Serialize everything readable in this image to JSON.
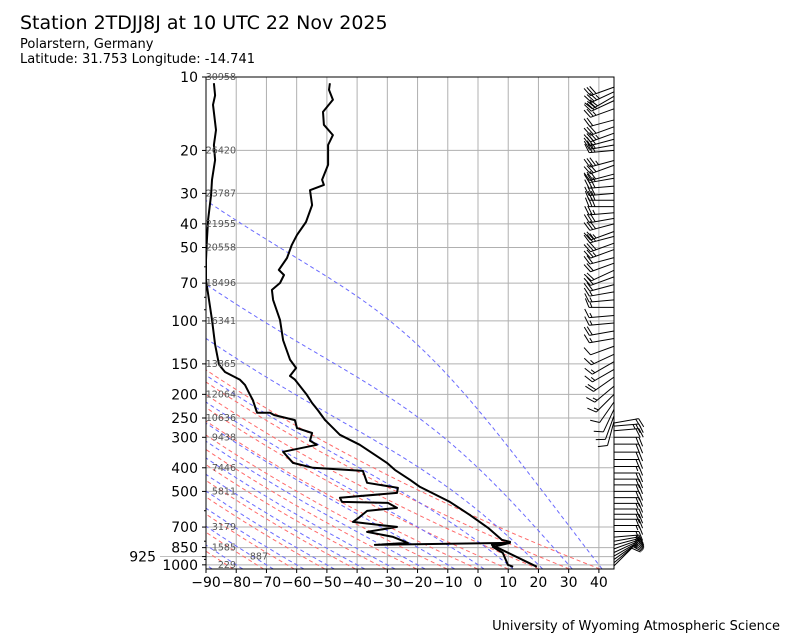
{
  "header": {
    "title": "Station 2TDJJ8J at 10 UTC 22 Nov 2025",
    "location": "Polarstern, Germany",
    "coordinates": "Latitude: 31.753 Longitude: -14.741"
  },
  "footer": "University of Wyoming Atmospheric Science",
  "chart_data": {
    "type": "line",
    "title": "Station 2TDJJ8J at 10 UTC 22 Nov 2025",
    "xlabel": "",
    "ylabel": "",
    "xlim": [
      -90,
      45
    ],
    "ylim": [
      1040,
      10
    ],
    "y_scale": "log",
    "grid": true,
    "colors": {
      "temperature": "#000000",
      "dewpoint": "#000000",
      "dry_adiabat": "#ff6a6a",
      "moist_adiabat": "#6a6aff",
      "grid": "#b0b0b0",
      "height_label": "#555555"
    },
    "x_ticks": [
      "−90",
      "−80",
      "−70",
      "−60",
      "−50",
      "−40",
      "−30",
      "−20",
      "−10",
      "0",
      "10",
      "20",
      "30",
      "40"
    ],
    "x_tick_values": [
      -90,
      -80,
      -70,
      -60,
      -50,
      -40,
      -30,
      -20,
      -10,
      0,
      10,
      20,
      30,
      40
    ],
    "y_ticks": [
      "10",
      "20",
      "30",
      "40",
      "50",
      "70",
      "100",
      "150",
      "200",
      "250",
      "300",
      "400",
      "500",
      "700",
      "850",
      "925",
      "1000"
    ],
    "y_tick_values": [
      10,
      20,
      30,
      40,
      50,
      70,
      100,
      150,
      200,
      250,
      300,
      400,
      500,
      700,
      850,
      925,
      1000
    ],
    "y_minor_ticks": [
      60,
      80,
      90,
      600,
      800,
      950
    ],
    "height_labels": [
      {
        "p": 10,
        "h": "30958"
      },
      {
        "p": 20,
        "h": "26420"
      },
      {
        "p": 30,
        "h": "23787"
      },
      {
        "p": 40,
        "h": "21955"
      },
      {
        "p": 50,
        "h": "20558"
      },
      {
        "p": 70,
        "h": "18496"
      },
      {
        "p": 100,
        "h": "16341"
      },
      {
        "p": 150,
        "h": "13865"
      },
      {
        "p": 200,
        "h": "12064"
      },
      {
        "p": 250,
        "h": "10636"
      },
      {
        "p": 300,
        "h": "9438"
      },
      {
        "p": 400,
        "h": "7446"
      },
      {
        "p": 500,
        "h": "5811"
      },
      {
        "p": 700,
        "h": "3179"
      },
      {
        "p": 850,
        "h": "1585"
      },
      {
        "p": 925,
        "h": "887"
      },
      {
        "p": 1000,
        "h": "229"
      }
    ],
    "dry_adiabats_theta_K": [
      190,
      200,
      210,
      220,
      230,
      240,
      250,
      260,
      270,
      280,
      290,
      300,
      310
    ],
    "moist_adiabats_t1000_C": [
      -90,
      -80,
      -70,
      -60,
      -50,
      -40,
      -30,
      -20,
      -10,
      0,
      10,
      20,
      30,
      40
    ],
    "series": [
      {
        "name": "temperature",
        "points_p_T": [
          [
            10.6,
            -49.0
          ],
          [
            11.3,
            -49.3
          ],
          [
            12.4,
            -48.0
          ],
          [
            13.9,
            -51.3
          ],
          [
            15.7,
            -51.0
          ],
          [
            17.3,
            -48.0
          ],
          [
            19.0,
            -49.6
          ],
          [
            22.9,
            -49.6
          ],
          [
            26.4,
            -51.6
          ],
          [
            27.7,
            -51.0
          ],
          [
            29.1,
            -55.6
          ],
          [
            33.5,
            -54.9
          ],
          [
            39.3,
            -56.9
          ],
          [
            44.4,
            -59.9
          ],
          [
            48.8,
            -61.6
          ],
          [
            55.2,
            -63.2
          ],
          [
            61.8,
            -65.9
          ],
          [
            64.8,
            -64.2
          ],
          [
            69.9,
            -65.5
          ],
          [
            74.6,
            -68.2
          ],
          [
            82.0,
            -67.8
          ],
          [
            99,
            -65.5
          ],
          [
            120,
            -64.5
          ],
          [
            144,
            -62.2
          ],
          [
            156,
            -60.2
          ],
          [
            168,
            -62.2
          ],
          [
            174,
            -60.6
          ],
          [
            201,
            -56.6
          ],
          [
            217,
            -54.9
          ],
          [
            232,
            -53.0
          ],
          [
            255,
            -50.6
          ],
          [
            293,
            -45.7
          ],
          [
            322,
            -39.1
          ],
          [
            382,
            -30.1
          ],
          [
            408,
            -27.5
          ],
          [
            448,
            -22.5
          ],
          [
            479,
            -19.2
          ],
          [
            552,
            -9.3
          ],
          [
            624,
            -2.7
          ],
          [
            705,
            3.3
          ],
          [
            790,
            7.9
          ],
          [
            805,
            10.6
          ],
          [
            828,
            4.6
          ],
          [
            868,
            7.9
          ],
          [
            1019,
            19.5
          ]
        ]
      },
      {
        "name": "dewpoint",
        "points_p_T": [
          [
            10.6,
            -87.4
          ],
          [
            11.9,
            -87.0
          ],
          [
            13.0,
            -87.7
          ],
          [
            16.5,
            -86.7
          ],
          [
            19.0,
            -87.4
          ],
          [
            21.9,
            -87.0
          ],
          [
            26.4,
            -88.0
          ],
          [
            30.4,
            -88.3
          ],
          [
            38.5,
            -89.3
          ],
          [
            46.6,
            -89.7
          ],
          [
            56.2,
            -90.0
          ],
          [
            67.9,
            -90.0
          ],
          [
            82.0,
            -89.0
          ],
          [
            99,
            -88.0
          ],
          [
            125,
            -87.0
          ],
          [
            151,
            -85.7
          ],
          [
            162,
            -83.7
          ],
          [
            174,
            -78.8
          ],
          [
            183,
            -77.1
          ],
          [
            201,
            -75.4
          ],
          [
            211,
            -74.5
          ],
          [
            238,
            -73.1
          ],
          [
            238,
            -68.8
          ],
          [
            243,
            -67.5
          ],
          [
            255,
            -60.6
          ],
          [
            275,
            -59.9
          ],
          [
            288,
            -54.9
          ],
          [
            310,
            -55.6
          ],
          [
            322,
            -53.3
          ],
          [
            344,
            -64.5
          ],
          [
            382,
            -61.2
          ],
          [
            400,
            -54.6
          ],
          [
            412,
            -38.1
          ],
          [
            461,
            -36.7
          ],
          [
            483,
            -26.5
          ],
          [
            507,
            -26.8
          ],
          [
            531,
            -45.7
          ],
          [
            552,
            -45.0
          ],
          [
            557,
            -29.8
          ],
          [
            584,
            -26.8
          ],
          [
            601,
            -36.7
          ],
          [
            636,
            -39.1
          ],
          [
            667,
            -41.4
          ],
          [
            699,
            -26.8
          ],
          [
            733,
            -36.7
          ],
          [
            768,
            -28.1
          ],
          [
            813,
            -23.2
          ],
          [
            828,
            -34.1
          ],
          [
            813,
            10.6
          ],
          [
            844,
            4.9
          ],
          [
            893,
            8.2
          ],
          [
            1000,
            9.9
          ],
          [
            1019,
            11.6
          ]
        ]
      }
    ],
    "wind_p_dir_kt": [
      [
        11,
        250,
        30
      ],
      [
        11.5,
        245,
        35
      ],
      [
        12,
        240,
        30
      ],
      [
        12.5,
        245,
        30
      ],
      [
        13.5,
        250,
        25
      ],
      [
        15,
        255,
        20
      ],
      [
        16,
        250,
        30
      ],
      [
        17,
        250,
        35
      ],
      [
        18,
        255,
        30
      ],
      [
        19,
        260,
        25
      ],
      [
        20,
        265,
        30
      ],
      [
        22,
        255,
        35
      ],
      [
        23,
        250,
        30
      ],
      [
        25,
        255,
        30
      ],
      [
        26,
        260,
        25
      ],
      [
        28,
        265,
        30
      ],
      [
        30,
        265,
        30
      ],
      [
        32,
        270,
        30
      ],
      [
        34,
        270,
        30
      ],
      [
        36,
        265,
        25
      ],
      [
        38,
        260,
        30
      ],
      [
        40,
        255,
        30
      ],
      [
        43,
        250,
        25
      ],
      [
        45,
        255,
        30
      ],
      [
        48,
        250,
        30
      ],
      [
        51,
        250,
        25
      ],
      [
        55,
        255,
        20
      ],
      [
        58,
        250,
        20
      ],
      [
        62,
        245,
        20
      ],
      [
        66,
        250,
        20
      ],
      [
        71,
        255,
        20
      ],
      [
        76,
        260,
        15
      ],
      [
        82,
        265,
        15
      ],
      [
        88,
        270,
        15
      ],
      [
        95,
        265,
        15
      ],
      [
        102,
        265,
        15
      ],
      [
        110,
        260,
        20
      ],
      [
        118,
        260,
        15
      ],
      [
        127,
        250,
        10
      ],
      [
        137,
        245,
        15
      ],
      [
        147,
        240,
        15
      ],
      [
        158,
        240,
        15
      ],
      [
        170,
        235,
        20
      ],
      [
        185,
        230,
        15
      ],
      [
        200,
        225,
        15
      ],
      [
        215,
        215,
        10
      ],
      [
        230,
        205,
        10
      ],
      [
        245,
        200,
        10
      ],
      [
        258,
        195,
        10
      ],
      [
        262,
        80,
        20
      ],
      [
        270,
        85,
        25
      ],
      [
        282,
        85,
        20
      ],
      [
        300,
        90,
        20
      ],
      [
        320,
        90,
        20
      ],
      [
        345,
        90,
        20
      ],
      [
        370,
        90,
        20
      ],
      [
        395,
        90,
        15
      ],
      [
        420,
        90,
        20
      ],
      [
        445,
        90,
        20
      ],
      [
        470,
        90,
        20
      ],
      [
        500,
        90,
        20
      ],
      [
        530,
        90,
        20
      ],
      [
        560,
        90,
        15
      ],
      [
        590,
        90,
        20
      ],
      [
        620,
        90,
        20
      ],
      [
        650,
        90,
        20
      ],
      [
        690,
        90,
        15
      ],
      [
        730,
        90,
        20
      ],
      [
        770,
        85,
        20
      ],
      [
        800,
        80,
        15
      ],
      [
        830,
        75,
        15
      ],
      [
        860,
        70,
        15
      ],
      [
        890,
        65,
        15
      ],
      [
        920,
        60,
        15
      ],
      [
        950,
        55,
        10
      ],
      [
        980,
        50,
        10
      ],
      [
        1010,
        45,
        10
      ]
    ]
  }
}
